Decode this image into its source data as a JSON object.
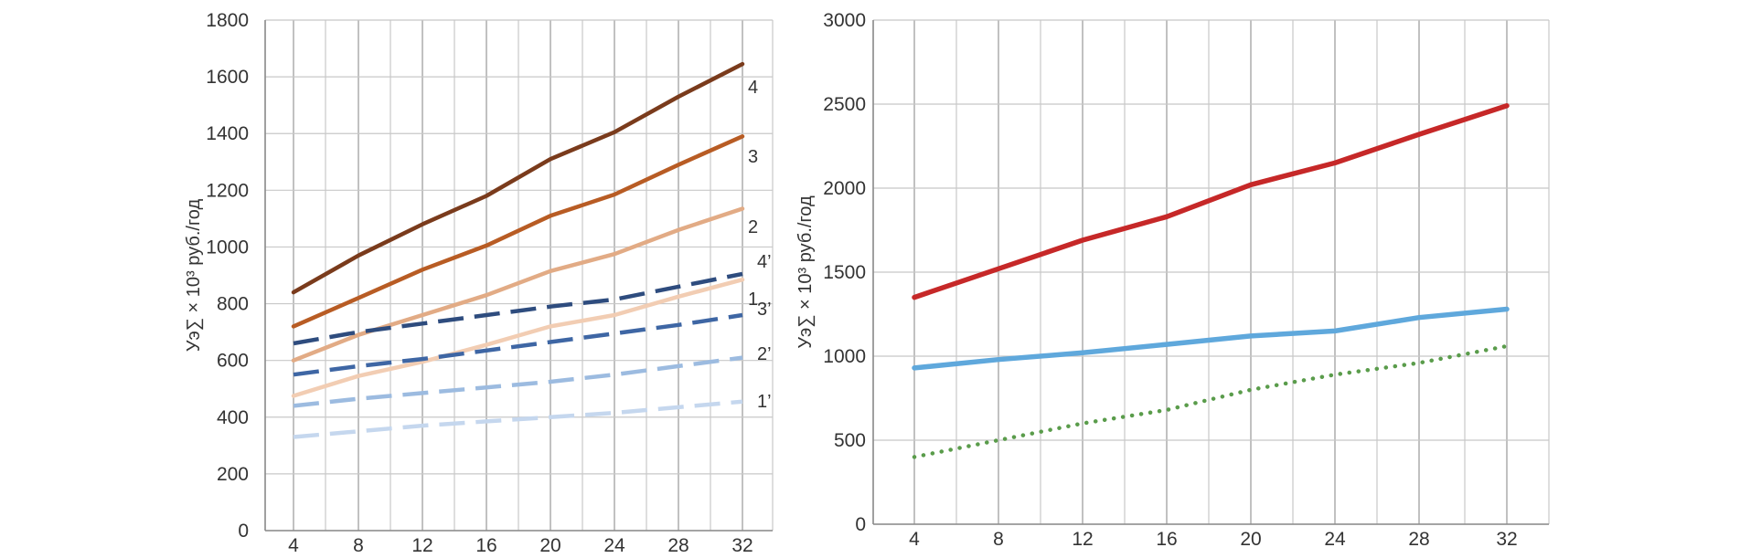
{
  "charts": [
    {
      "type": "line",
      "ylabel": "Уэ∑ × 10³ руб./год",
      "xlabel": "",
      "x": [
        4,
        8,
        12,
        16,
        20,
        24,
        28,
        32
      ],
      "xlim": [
        2,
        32.4
      ],
      "ylim": [
        0,
        1800
      ],
      "y_ticks": [
        0,
        200,
        400,
        600,
        800,
        1000,
        1200,
        1400,
        1600,
        1800
      ],
      "x_ticks": [
        4,
        8,
        12,
        16,
        20,
        24,
        28,
        32
      ],
      "grid": true,
      "legend": "inline labels at line ends",
      "series": [
        {
          "name": "4",
          "color": "#7a3b1c",
          "style": "solid",
          "values": [
            840,
            970,
            1080,
            1180,
            1310,
            1405,
            1530,
            1645
          ]
        },
        {
          "name": "3",
          "color": "#b85c24",
          "style": "solid",
          "values": [
            720,
            820,
            920,
            1005,
            1110,
            1185,
            1290,
            1390
          ]
        },
        {
          "name": "2",
          "color": "#e2ab85",
          "style": "solid",
          "values": [
            600,
            690,
            760,
            830,
            915,
            975,
            1060,
            1135
          ]
        },
        {
          "name": "1",
          "color": "#f2cdb3",
          "style": "solid",
          "values": [
            475,
            545,
            595,
            655,
            720,
            760,
            825,
            885
          ]
        },
        {
          "name": "4’",
          "color": "#2e4c7e",
          "style": "dashed",
          "values": [
            660,
            700,
            730,
            760,
            790,
            815,
            860,
            905
          ]
        },
        {
          "name": "3’",
          "color": "#3e66a4",
          "style": "dashed",
          "values": [
            550,
            580,
            605,
            635,
            665,
            695,
            725,
            760
          ]
        },
        {
          "name": "2’",
          "color": "#9cbbe0",
          "style": "dashed",
          "values": [
            440,
            465,
            485,
            505,
            525,
            550,
            580,
            610
          ]
        },
        {
          "name": "1’",
          "color": "#c5d7ee",
          "style": "dashed",
          "values": [
            330,
            350,
            370,
            385,
            400,
            415,
            435,
            455
          ]
        }
      ]
    },
    {
      "type": "line",
      "ylabel": "Уэ∑ × 10³ руб./год",
      "xlabel": "",
      "x": [
        4,
        8,
        12,
        16,
        20,
        24,
        28,
        32
      ],
      "xlim": [
        4,
        32
      ],
      "ylim": [
        0,
        3000
      ],
      "y_ticks": [
        0,
        500,
        1000,
        1500,
        2000,
        2500,
        3000
      ],
      "x_ticks": [
        4,
        8,
        12,
        16,
        20,
        24,
        28,
        32
      ],
      "grid": true,
      "legend": "none",
      "series": [
        {
          "color": "#c62828",
          "style": "solid",
          "values": [
            1350,
            1520,
            1690,
            1830,
            2020,
            2150,
            2320,
            2490
          ]
        },
        {
          "color": "#5fa8dc",
          "style": "solid",
          "values": [
            930,
            980,
            1020,
            1070,
            1120,
            1150,
            1230,
            1280
          ]
        },
        {
          "color": "#5a9c4b",
          "style": "dotted",
          "values": [
            400,
            500,
            600,
            680,
            800,
            890,
            960,
            1060
          ]
        }
      ]
    }
  ]
}
